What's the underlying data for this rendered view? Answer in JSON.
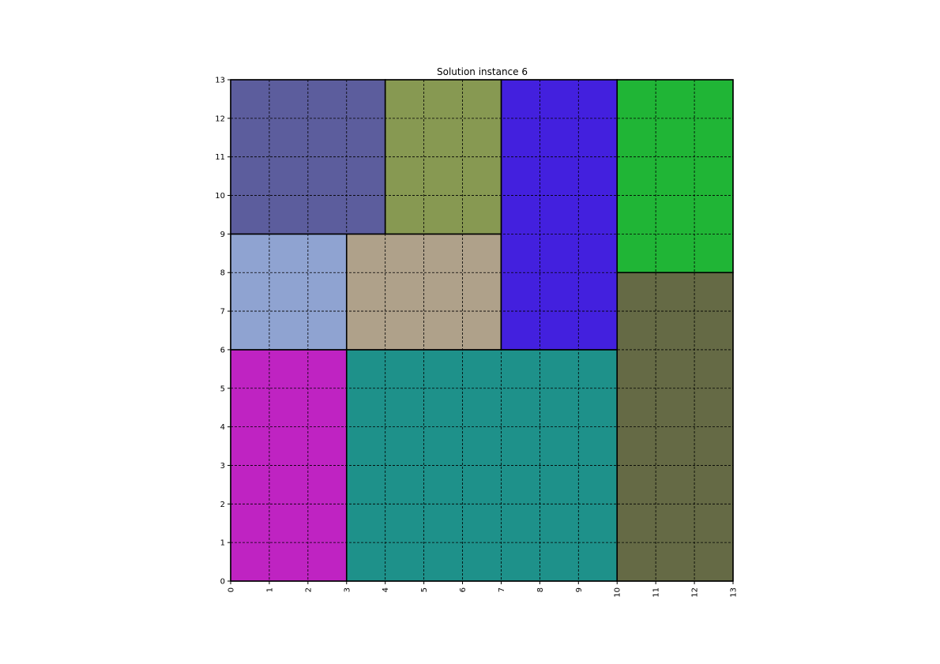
{
  "chart_data": {
    "type": "heatmap",
    "title": "Solution instance 6",
    "xlabel": "",
    "ylabel": "",
    "xlim": [
      0,
      13
    ],
    "ylim": [
      0,
      13
    ],
    "xticks": [
      "0",
      "1",
      "2",
      "3",
      "4",
      "5",
      "6",
      "7",
      "8",
      "9",
      "10",
      "11",
      "12",
      "13"
    ],
    "yticks": [
      "0",
      "1",
      "2",
      "3",
      "4",
      "5",
      "6",
      "7",
      "8",
      "9",
      "10",
      "11",
      "12",
      "13"
    ],
    "grid": true,
    "rectangles": [
      {
        "x": 0,
        "y": 0,
        "width": 3,
        "height": 6,
        "color": "#bf23c2"
      },
      {
        "x": 3,
        "y": 0,
        "width": 7,
        "height": 6,
        "color": "#1e918a"
      },
      {
        "x": 10,
        "y": 0,
        "width": 3,
        "height": 8,
        "color": "#656a45"
      },
      {
        "x": 0,
        "y": 6,
        "width": 3,
        "height": 3,
        "color": "#8fa3d1"
      },
      {
        "x": 3,
        "y": 6,
        "width": 4,
        "height": 3,
        "color": "#afa18a"
      },
      {
        "x": 7,
        "y": 6,
        "width": 3,
        "height": 7,
        "color": "#4320de"
      },
      {
        "x": 10,
        "y": 8,
        "width": 3,
        "height": 5,
        "color": "#20b536"
      },
      {
        "x": 0,
        "y": 9,
        "width": 4,
        "height": 4,
        "color": "#5c5d9d"
      },
      {
        "x": 4,
        "y": 9,
        "width": 3,
        "height": 4,
        "color": "#879952"
      }
    ]
  }
}
